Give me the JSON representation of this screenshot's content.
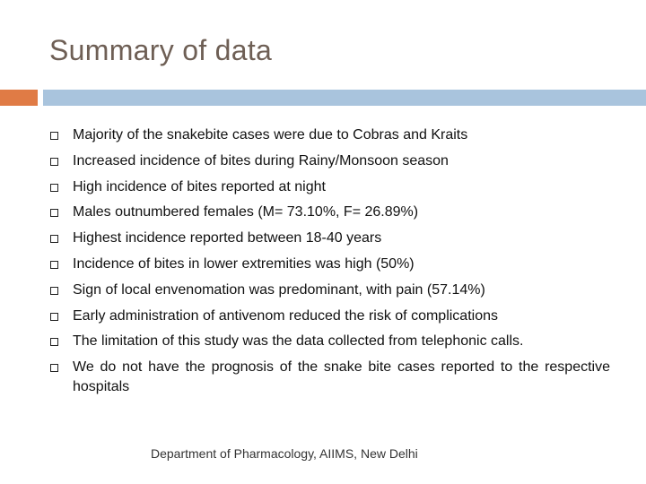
{
  "slide": {
    "title": "Summary of data",
    "colors": {
      "title": "#6e5f55",
      "accent_bar": "#e07b45",
      "rule_bar": "#a9c4dd"
    },
    "bullet_icon": "square-bullet-icon",
    "bullets": [
      "Majority of the snakebite cases were due to Cobras and Kraits",
      "Increased incidence of bites during Rainy/Monsoon season",
      "High incidence of bites reported at night",
      "Males outnumbered females (M= 73.10%, F= 26.89%)",
      "Highest incidence reported between 18-40 years",
      "Incidence of bites in lower extremities was high (50%)",
      "Sign of local envenomation was predominant, with pain (57.14%)",
      "Early administration of antivenom reduced the risk of complications",
      "The limitation of this study was the data collected from telephonic calls.",
      "We do not have the prognosis of the snake bite cases reported to the respective hospitals"
    ],
    "footer": "Department of Pharmacology, AIIMS, New Delhi"
  }
}
